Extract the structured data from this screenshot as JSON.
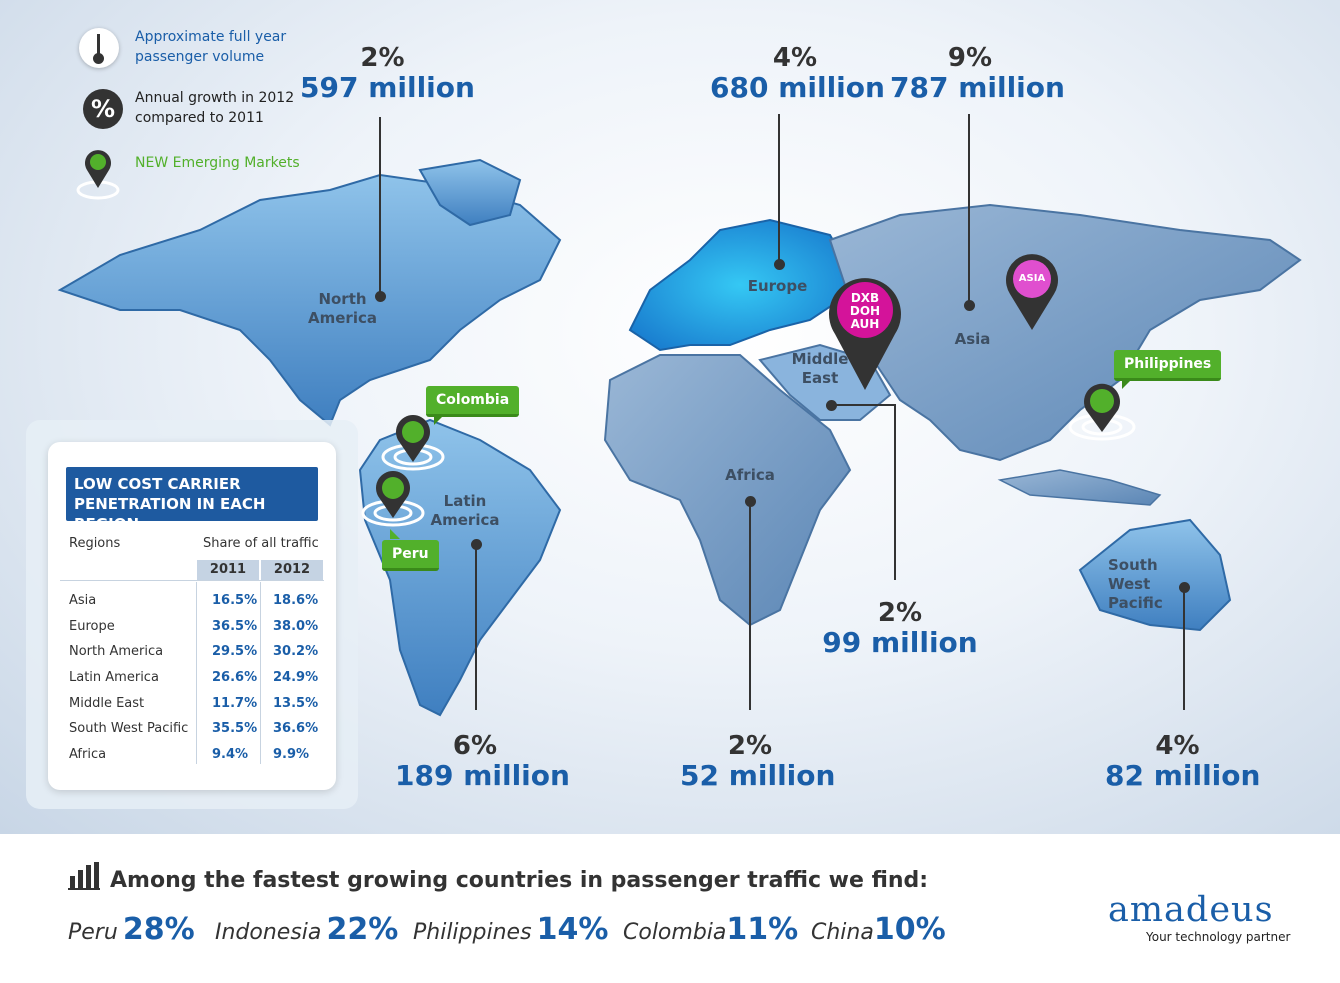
{
  "legend": {
    "volume": "Approximate full year passenger volume",
    "volume_line1": "Approximate full year",
    "volume_line2": "passenger volume",
    "growth_line1": "Annual growth in 2012",
    "growth_line2": "compared to 2011",
    "growth_symbol": "%",
    "emerging": "NEW Emerging Markets"
  },
  "regions": {
    "north_america": {
      "label1": "North",
      "label2": "America",
      "pct": "2%",
      "volume": "597 million"
    },
    "europe": {
      "label1": "Europe",
      "pct": "4%",
      "volume": "680 million"
    },
    "asia": {
      "label1": "Asia",
      "pct": "9%",
      "volume": "787 million"
    },
    "middle_east": {
      "label1": "Middle",
      "label2": "East",
      "pct": "2%",
      "volume": "99 million"
    },
    "latin_america": {
      "label1": "Latin",
      "label2": "America",
      "pct": "6%",
      "volume": "189  million"
    },
    "africa": {
      "label1": "Africa",
      "pct": "2%",
      "volume": "52 million"
    },
    "south_west_pacific": {
      "label1": "South West",
      "label2": "Pacific",
      "pct": "4%",
      "volume": "82 million"
    }
  },
  "markers": {
    "colombia": "Colombia",
    "peru": "Peru",
    "philippines": "Philippines",
    "asia_pin": "ASIA",
    "me_pin_1": "DXB",
    "me_pin_2": "DOH",
    "me_pin_3": "AUH"
  },
  "table": {
    "title_line1": "LOW COST CARRIER",
    "title_line2": "PENETRATION IN EACH REGION",
    "col_regions": "Regions",
    "col_share": "Share of all traffic",
    "year1": "2011",
    "year2": "2012",
    "rows": [
      {
        "region": "Asia",
        "y2011": "16.5%",
        "y2012": "18.6%"
      },
      {
        "region": "Europe",
        "y2011": "36.5%",
        "y2012": "38.0%"
      },
      {
        "region": "North America",
        "y2011": "29.5%",
        "y2012": "30.2%"
      },
      {
        "region": "Latin America",
        "y2011": "26.6%",
        "y2012": "24.9%"
      },
      {
        "region": "Middle East",
        "y2011": "11.7%",
        "y2012": "13.5%"
      },
      {
        "region": "South West Pacific",
        "y2011": "35.5%",
        "y2012": "36.6%"
      },
      {
        "region": "Africa",
        "y2011": "9.4%",
        "y2012": "9.9%"
      }
    ]
  },
  "bottom": {
    "headline": "Among the fastest growing countries in passenger traffic we find:",
    "countries": [
      {
        "name": "Peru",
        "pct": "28%"
      },
      {
        "name": "Indonesia",
        "pct": "22%"
      },
      {
        "name": "Philippines",
        "pct": "14%"
      },
      {
        "name": "Colombia",
        "pct": "11%"
      },
      {
        "name": "China",
        "pct": "10%"
      }
    ],
    "brand": "amadeus",
    "tagline": "Your technology partner"
  },
  "colors": {
    "brand_blue": "#1a5ea8",
    "emerging_green": "#52b02b",
    "pin_magenta": "#d4139a",
    "table_title_bg": "#1e5aa0"
  },
  "icons": [
    "thermometer-icon",
    "percent-icon",
    "location-pin-icon",
    "bar-chart-icon"
  ]
}
